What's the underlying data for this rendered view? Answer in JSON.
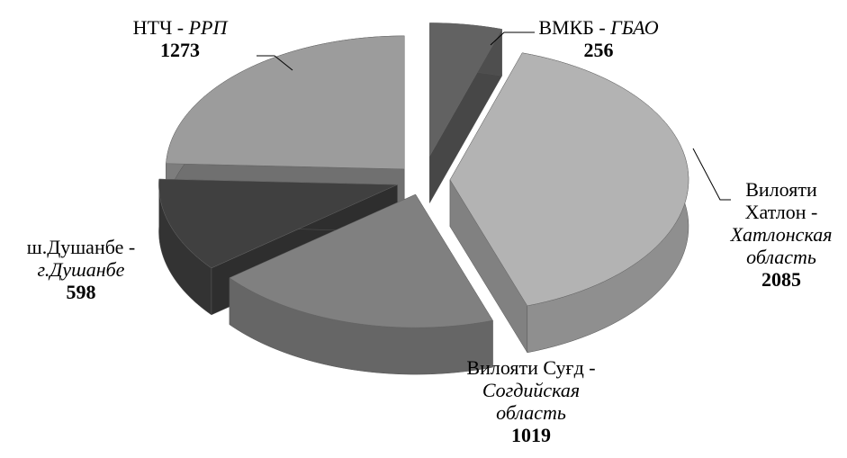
{
  "chart_data": {
    "type": "pie",
    "categories": [
      "ВМКБ -",
      "Вилояти\nХатлон -",
      "Вилояти Суғд -",
      "ш.Душанбе -",
      "НТЧ -"
    ],
    "category_translations": [
      "ГБАО",
      "Хатлонская\nобласть",
      "Согдийская\nобласть",
      "г.Душанбе",
      "РРП"
    ],
    "values": [
      256,
      2085,
      1019,
      598,
      1273
    ],
    "colors": [
      "#626262",
      "#b3b3b3",
      "#808080",
      "#404040",
      "#9c9c9c"
    ]
  }
}
